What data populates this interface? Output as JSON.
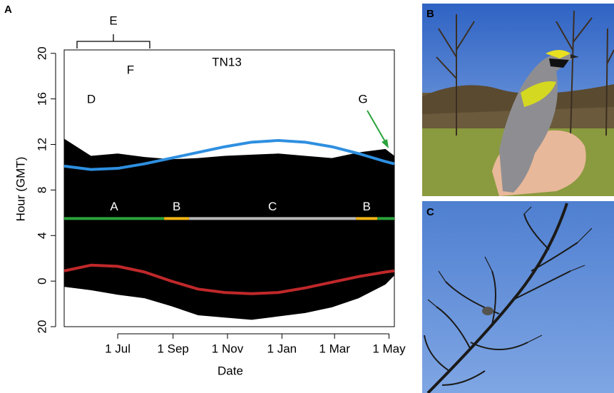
{
  "chart_data": {
    "type": "line",
    "panel_label": "A",
    "title": "TN13",
    "x_label": "Date",
    "y_label": "Hour (GMT)",
    "xlim": [
      -60,
      310
    ],
    "ylim": [
      -4,
      20.3
    ],
    "xticks": [
      {
        "value": 0,
        "label": "1 Jul"
      },
      {
        "value": 62,
        "label": "1 Sep"
      },
      {
        "value": 123,
        "label": "1 Nov"
      },
      {
        "value": 184,
        "label": "1 Jan"
      },
      {
        "value": 243,
        "label": "1 Mar"
      },
      {
        "value": 304,
        "label": "1 May"
      }
    ],
    "yticks": [
      {
        "value": -4,
        "label": "20"
      },
      0,
      4,
      8,
      12,
      16,
      20
    ],
    "x": [
      -60,
      -30,
      0,
      30,
      60,
      90,
      120,
      150,
      180,
      210,
      240,
      270,
      300,
      310
    ],
    "series": [
      {
        "name": null,
        "color": "#2e8fe0",
        "values": [
          10.1,
          9.8,
          9.9,
          10.3,
          10.8,
          11.3,
          11.8,
          12.2,
          12.35,
          12.2,
          11.8,
          11.2,
          10.5,
          10.3
        ]
      },
      {
        "name": null,
        "color": "#c0282a",
        "values": [
          0.9,
          1.4,
          1.3,
          0.8,
          0.0,
          -0.7,
          -1.0,
          -1.1,
          -1.0,
          -0.6,
          -0.1,
          0.4,
          0.8,
          0.9
        ]
      }
    ],
    "activity": {
      "color": "#000000",
      "upper": [
        12.5,
        11.0,
        11.2,
        10.9,
        10.7,
        10.8,
        11.0,
        11.1,
        11.2,
        11.0,
        10.8,
        11.3,
        11.6,
        11.0
      ],
      "lower": [
        -0.5,
        -0.8,
        -1.2,
        -1.5,
        -2.2,
        -3.0,
        -3.2,
        -3.4,
        -3.1,
        -2.8,
        -2.3,
        -1.5,
        -0.3,
        0.5
      ]
    },
    "phase_level": 5.5,
    "phases": [
      {
        "label": "A",
        "start": -60,
        "end": 52,
        "color": "#2aa33a"
      },
      {
        "label": "B",
        "start": 52,
        "end": 80,
        "color": "#f2b516"
      },
      {
        "label": "C",
        "start": 80,
        "end": 267,
        "color": "#b8b8b8"
      },
      {
        "label": "B",
        "start": 267,
        "end": 291,
        "color": "#f2b516"
      },
      {
        "label": null,
        "start": 291,
        "end": 310,
        "color": "#2aa33a"
      }
    ],
    "annotations": {
      "D": "D",
      "E": "E",
      "F": "F",
      "G": "G"
    }
  },
  "photos": {
    "b": {
      "label": "B"
    },
    "c": {
      "label": "C"
    }
  }
}
